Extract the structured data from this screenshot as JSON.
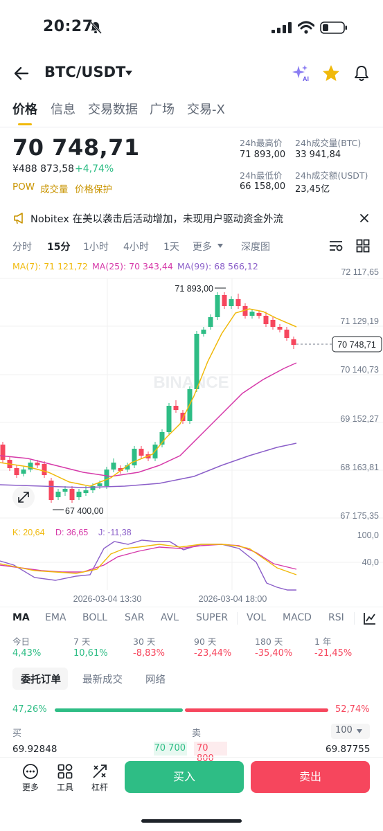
{
  "status": {
    "time": "20:27"
  },
  "header": {
    "pair": "BTC/USDT"
  },
  "tabs": [
    "价格",
    "信息",
    "交易数据",
    "广场",
    "交易-X"
  ],
  "price": {
    "last": "70 748,71",
    "cny": "¥488 873,58",
    "change": "+4,74%",
    "tags": [
      "POW",
      "成交量",
      "价格保护"
    ]
  },
  "stats": {
    "high_label": "24h最高价",
    "high": "71 893,00",
    "vol_btc_label": "24h成交量(BTC)",
    "vol_btc": "33 941,84",
    "low_label": "24h最低价",
    "low": "66 158,00",
    "vol_usdt_label": "24h成交额(USDT)",
    "vol_usdt": "23,45亿"
  },
  "news": {
    "text": "Nobitex 在美以袭击后活动增加，未现用户驱动资金外流"
  },
  "intervals": [
    "分时",
    "15分",
    "1小时",
    "4小时",
    "1天",
    "更多",
    "深度图"
  ],
  "ma_legend": {
    "ma7": "MA(7): 71 121,72",
    "ma25": "MA(25): 70 343,44",
    "ma99": "MA(99): 68 566,12"
  },
  "chart": {
    "price_ticks": [
      "72 117,65",
      "71 129,19",
      "70 140,73",
      "69 152,27",
      "68 163,81",
      "67 175,35"
    ],
    "current_price": "70 748,71",
    "high_marker": "71 893,00",
    "low_marker": "67 400,00",
    "watermark": "BINANCE",
    "kdj_legend": {
      "k": "K: 20,64",
      "d": "D: 36,65",
      "j": "J: -11,38"
    },
    "kdj_ticks": [
      "100,0",
      "40,0"
    ],
    "time_labels": [
      "2026-03-04 13:30",
      "2026-03-04 18:00"
    ],
    "colors": {
      "up": "#2ebd85",
      "down": "#f6465d",
      "ma7": "#f0b90b",
      "ma25": "#d63aa9",
      "ma99": "#8b5fc9"
    }
  },
  "indicators": [
    "MA",
    "EMA",
    "BOLL",
    "SAR",
    "AVL",
    "SUPER",
    "VOL",
    "MACD",
    "RSI"
  ],
  "performance": [
    {
      "label": "今日",
      "value": "4,43%",
      "dir": "up"
    },
    {
      "label": "7 天",
      "value": "10,61%",
      "dir": "up"
    },
    {
      "label": "30 天",
      "value": "-8,83%",
      "dir": "down"
    },
    {
      "label": "90 天",
      "value": "-23,44%",
      "dir": "down"
    },
    {
      "label": "180 天",
      "value": "-35,40%",
      "dir": "down"
    },
    {
      "label": "1 年",
      "value": "-21,45%",
      "dir": "down"
    }
  ],
  "order_tabs": [
    "委托订单",
    "最新成交",
    "网络"
  ],
  "orderbook": {
    "buy_ratio": "47,26%",
    "sell_ratio": "52,74%",
    "buy_label": "买",
    "sell_label": "卖",
    "depth": "100",
    "bid": "69.92848",
    "ask": "69.87755",
    "mid_bid": "70 700",
    "mid_ask": "70 800"
  },
  "bottom": {
    "more": "更多",
    "tools": "工具",
    "leverage": "杠杆",
    "buy": "买入",
    "sell": "卖出"
  }
}
